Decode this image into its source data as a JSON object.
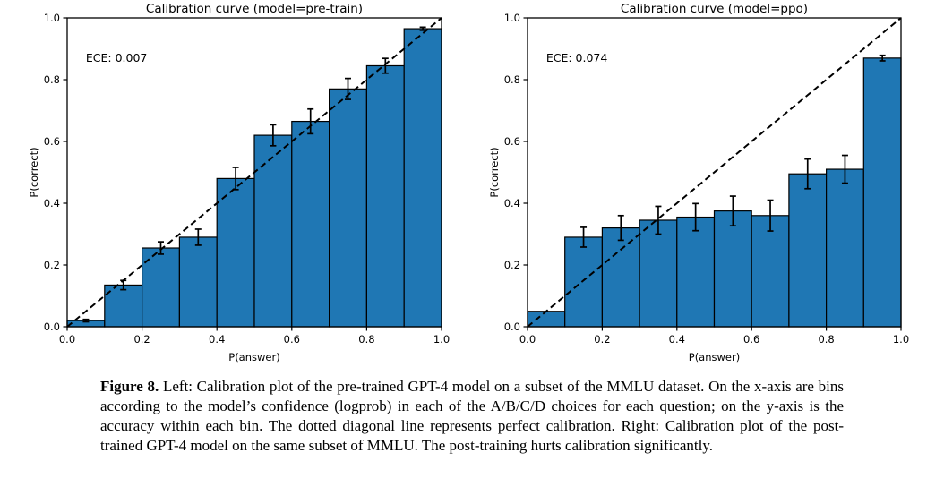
{
  "figure": {
    "caption_label": "Figure 8.",
    "caption_text": " Left: Calibration plot of the pre-trained GPT-4 model on a subset of the MMLU dataset. On the x-axis are bins according to the model’s confidence (logprob) in each of the A/B/C/D choices for each question; on the y-axis is the accuracy within each bin. The dotted diagonal line represents perfect calibration. Right: Calibration plot of the post-trained GPT-4 model on the same subset of MMLU. The post-training hurts calibration significantly."
  },
  "colors": {
    "bar_fill": "#1f77b4",
    "bar_edge": "#000000",
    "diagonal": "#000000",
    "text": "#000000"
  },
  "chart_data": [
    {
      "type": "bar",
      "title": "Calibration curve (model=pre-train)",
      "annotation": "ECE: 0.007",
      "xlabel": "P(answer)",
      "ylabel": "P(correct)",
      "xlim": [
        0,
        1
      ],
      "ylim": [
        0,
        1
      ],
      "xticks": [
        0.0,
        0.2,
        0.4,
        0.6,
        0.8,
        1.0
      ],
      "yticks": [
        0.0,
        0.2,
        0.4,
        0.6,
        0.8,
        1.0
      ],
      "grid": false,
      "legend": null,
      "diagonal_reference_line": true,
      "bin_edges": [
        0.0,
        0.1,
        0.2,
        0.3,
        0.4,
        0.5,
        0.6,
        0.7,
        0.8,
        0.9,
        1.0
      ],
      "values": [
        0.02,
        0.135,
        0.255,
        0.29,
        0.48,
        0.62,
        0.665,
        0.77,
        0.845,
        0.965
      ],
      "errors": [
        0.004,
        0.015,
        0.02,
        0.026,
        0.036,
        0.034,
        0.04,
        0.034,
        0.024,
        0.005
      ]
    },
    {
      "type": "bar",
      "title": "Calibration curve (model=ppo)",
      "annotation": "ECE: 0.074",
      "xlabel": "P(answer)",
      "ylabel": "P(correct)",
      "xlim": [
        0,
        1
      ],
      "ylim": [
        0,
        1
      ],
      "xticks": [
        0.0,
        0.2,
        0.4,
        0.6,
        0.8,
        1.0
      ],
      "yticks": [
        0.0,
        0.2,
        0.4,
        0.6,
        0.8,
        1.0
      ],
      "grid": false,
      "legend": null,
      "diagonal_reference_line": true,
      "bin_edges": [
        0.0,
        0.1,
        0.2,
        0.3,
        0.4,
        0.5,
        0.6,
        0.7,
        0.8,
        0.9,
        1.0
      ],
      "values": [
        0.05,
        0.29,
        0.32,
        0.345,
        0.355,
        0.375,
        0.36,
        0.495,
        0.51,
        0.87
      ],
      "errors": [
        0,
        0.032,
        0.04,
        0.045,
        0.044,
        0.048,
        0.05,
        0.048,
        0.045,
        0.009
      ]
    }
  ]
}
